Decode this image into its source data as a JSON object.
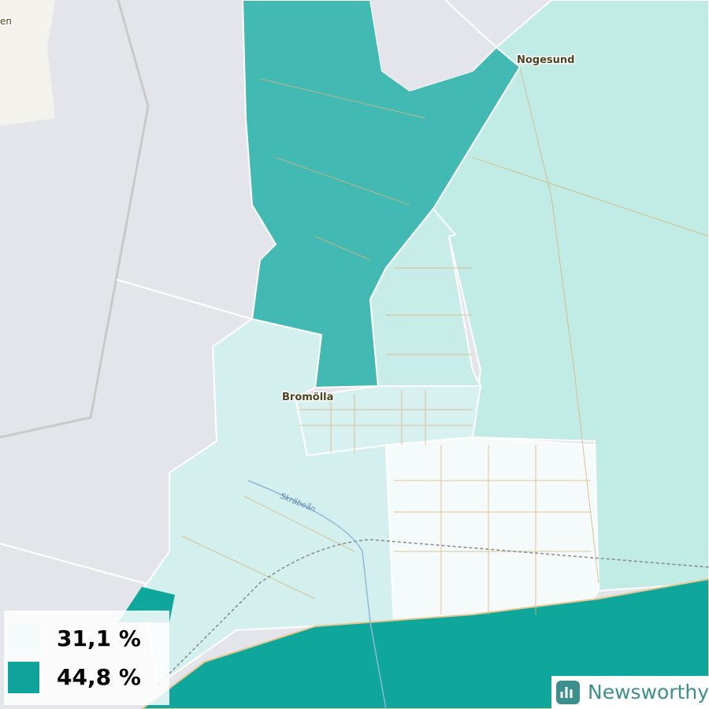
{
  "places": [
    {
      "label": "en"
    },
    {
      "label": "Nogesund"
    },
    {
      "label": "Bromölla"
    }
  ],
  "rivers": [
    {
      "label": "Skräbeån"
    }
  ],
  "legend": {
    "items": [
      {
        "label": "31,1 %"
      },
      {
        "label": "44,8 %"
      }
    ]
  },
  "brand": {
    "label": "Newsworthy"
  }
}
